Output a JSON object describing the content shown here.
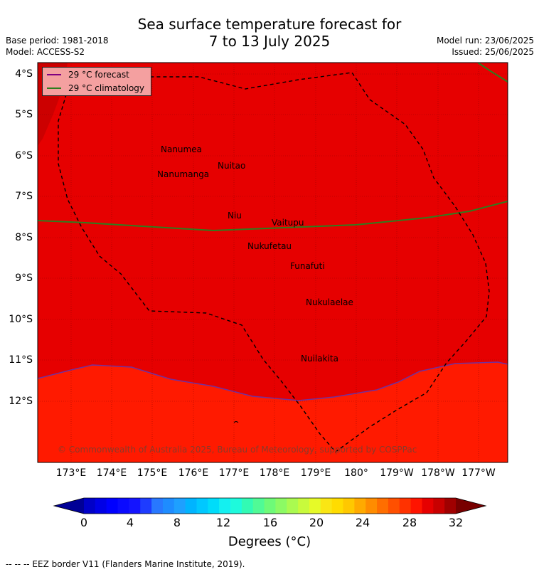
{
  "header": {
    "title_line1": "Sea surface temperature forecast for",
    "title_line2": "7 to 13 July 2025",
    "base_period": "Base period: 1981-2018",
    "model": "Model: ACCESS-S2",
    "model_run": "Model run: 23/06/2025",
    "issued": "Issued: 25/06/2025"
  },
  "legend": {
    "forecast_label": "29 °C  forecast",
    "forecast_color": "#800080",
    "climatology_label": "29 °C  climatology",
    "climatology_color": "#2e7d1e"
  },
  "map": {
    "lat_labels": [
      "4°S",
      "5°S",
      "6°S",
      "7°S",
      "8°S",
      "9°S",
      "10°S",
      "11°S",
      "12°S"
    ],
    "lon_labels": [
      "173°E",
      "174°E",
      "175°E",
      "176°E",
      "177°E",
      "178°E",
      "179°E",
      "180°",
      "179°W",
      "178°W",
      "177°W"
    ],
    "places": [
      {
        "name": "Nanumea"
      },
      {
        "name": "Nuitao"
      },
      {
        "name": "Nanumanga"
      },
      {
        "name": "Niu"
      },
      {
        "name": "Vaitupu"
      },
      {
        "name": "Nukufetau"
      },
      {
        "name": "Funafuti"
      },
      {
        "name": "Nukulaelae"
      },
      {
        "name": "Nuilakita"
      }
    ],
    "copyright": "© Commonwealth of Australia 2025, Bureau of Meteorology, supported by COSPPac",
    "colors": {
      "warm_region": "#e60000",
      "cool_region": "#ff1a00",
      "hot_patch": "#cc0000"
    }
  },
  "colorbar": {
    "ticks": [
      "0",
      "4",
      "8",
      "12",
      "16",
      "20",
      "24",
      "28",
      "32"
    ],
    "label": "Degrees (°C)",
    "colors": [
      "#000096",
      "#0000c8",
      "#0000e6",
      "#0000ff",
      "#0a0aff",
      "#1414ff",
      "#1e3cff",
      "#2878ff",
      "#1e8cff",
      "#1ea0ff",
      "#00b4ff",
      "#00c8ff",
      "#00dcfa",
      "#14f0f0",
      "#1efadc",
      "#32fab4",
      "#50fa96",
      "#6efa78",
      "#8cfa64",
      "#aafa50",
      "#c8fa3c",
      "#e6fa28",
      "#fae614",
      "#ffdc00",
      "#ffc800",
      "#ffaa00",
      "#ff8c00",
      "#ff6e00",
      "#ff5000",
      "#ff3200",
      "#ff1400",
      "#e60000",
      "#c80000",
      "#a00000",
      "#780000"
    ]
  },
  "footer": {
    "eez_note": "--  --  -- EEZ border V11 (Flanders Marine Institute, 2019)."
  }
}
